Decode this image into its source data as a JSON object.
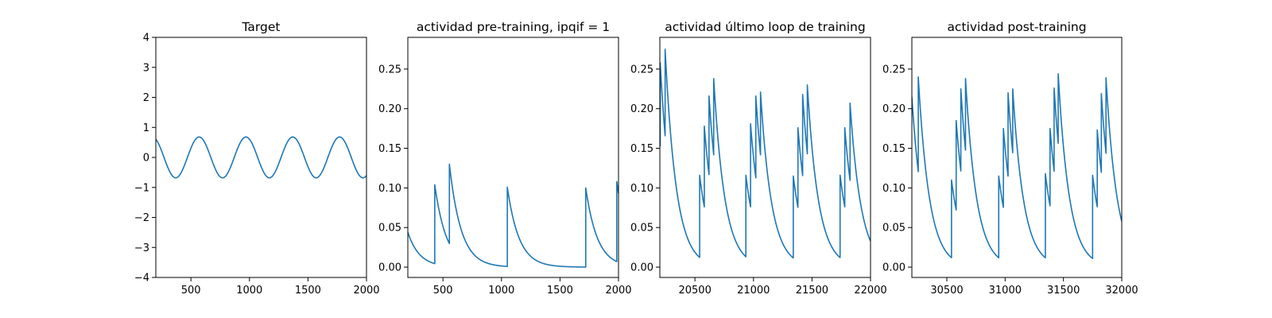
{
  "chart_data": [
    {
      "type": "line",
      "title": "Target",
      "xlim": [
        200,
        2000
      ],
      "ylim": [
        -4,
        4
      ],
      "xticks": [
        "500",
        "1000",
        "1500",
        "2000"
      ],
      "yticks": [
        "−4",
        "−3",
        "−2",
        "−1",
        "0",
        "1",
        "2",
        "3",
        "4"
      ],
      "series": [
        {
          "kind": "sine",
          "amplitude": 0.68,
          "period": 400,
          "peak_at": 570,
          "x_range": [
            200,
            2000
          ]
        }
      ]
    },
    {
      "type": "line",
      "title": "actividad pre-training, ipqif = 1",
      "xlim": [
        200,
        2000
      ],
      "ylim": [
        -0.013,
        0.29
      ],
      "xticks": [
        "500",
        "1000",
        "1500",
        "2000"
      ],
      "yticks": [
        "0.00",
        "0.05",
        "0.10",
        "0.15",
        "0.20",
        "0.25"
      ],
      "series": [
        {
          "kind": "spikes",
          "start_value": 0.044,
          "decay": 100,
          "x_range": [
            200,
            2000
          ],
          "spikes": [
            {
              "x": 430,
              "value": 0.104
            },
            {
              "x": 555,
              "value": 0.13
            },
            {
              "x": 1050,
              "value": 0.101
            },
            {
              "x": 1720,
              "value": 0.1
            },
            {
              "x": 1985,
              "value": 0.108
            }
          ]
        }
      ]
    },
    {
      "type": "line",
      "title": "actividad último loop de training",
      "xlim": [
        20200,
        22000
      ],
      "ylim": [
        -0.013,
        0.29
      ],
      "xticks": [
        "20500",
        "21000",
        "21500",
        "22000"
      ],
      "yticks": [
        "0.00",
        "0.05",
        "0.10",
        "0.15",
        "0.20",
        "0.25"
      ],
      "series": [
        {
          "kind": "spikes",
          "start_value": 0.158,
          "decay": 95,
          "x_range": [
            20200,
            22000
          ],
          "spikes": [
            {
              "x": 20203,
              "value": 0.258
            },
            {
              "x": 20245,
              "value": 0.275
            },
            {
              "x": 20540,
              "value": 0.116
            },
            {
              "x": 20580,
              "value": 0.178
            },
            {
              "x": 20620,
              "value": 0.216
            },
            {
              "x": 20660,
              "value": 0.238
            },
            {
              "x": 20935,
              "value": 0.116
            },
            {
              "x": 20975,
              "value": 0.181
            },
            {
              "x": 21020,
              "value": 0.216
            },
            {
              "x": 21060,
              "value": 0.221
            },
            {
              "x": 21340,
              "value": 0.115
            },
            {
              "x": 21380,
              "value": 0.176
            },
            {
              "x": 21420,
              "value": 0.218
            },
            {
              "x": 21460,
              "value": 0.23
            },
            {
              "x": 21740,
              "value": 0.116
            },
            {
              "x": 21780,
              "value": 0.176
            },
            {
              "x": 21825,
              "value": 0.207
            }
          ]
        }
      ]
    },
    {
      "type": "line",
      "title": "actividad post-training",
      "xlim": [
        30200,
        32000
      ],
      "ylim": [
        -0.013,
        0.29
      ],
      "xticks": [
        "30500",
        "31000",
        "31500",
        "32000"
      ],
      "yticks": [
        "0.00",
        "0.05",
        "0.10",
        "0.15",
        "0.20",
        "0.25"
      ],
      "series": [
        {
          "kind": "spikes",
          "start_value": 0.215,
          "decay": 95,
          "x_range": [
            30200,
            32000
          ],
          "spikes": [
            {
              "x": 30255,
              "value": 0.24
            },
            {
              "x": 30540,
              "value": 0.11
            },
            {
              "x": 30580,
              "value": 0.185
            },
            {
              "x": 30620,
              "value": 0.225
            },
            {
              "x": 30660,
              "value": 0.238
            },
            {
              "x": 30945,
              "value": 0.115
            },
            {
              "x": 30985,
              "value": 0.175
            },
            {
              "x": 31025,
              "value": 0.22
            },
            {
              "x": 31065,
              "value": 0.225
            },
            {
              "x": 31345,
              "value": 0.118
            },
            {
              "x": 31385,
              "value": 0.175
            },
            {
              "x": 31420,
              "value": 0.226
            },
            {
              "x": 31455,
              "value": 0.244
            },
            {
              "x": 31750,
              "value": 0.116
            },
            {
              "x": 31790,
              "value": 0.173
            },
            {
              "x": 31825,
              "value": 0.219
            },
            {
              "x": 31865,
              "value": 0.239
            }
          ]
        }
      ]
    }
  ]
}
